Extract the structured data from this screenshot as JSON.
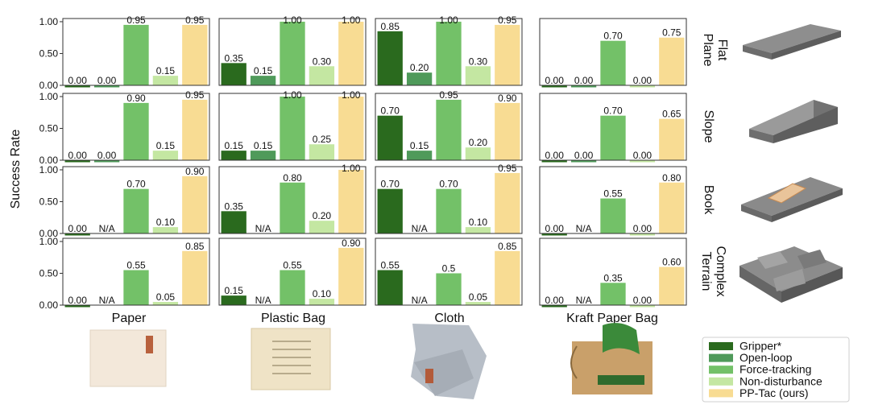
{
  "figure": {
    "ylabel": "Success Rate",
    "ytick_labels": [
      "0.00",
      "0.50",
      "1.00"
    ],
    "na_label": "N/A"
  },
  "chart_data": {
    "type": "bar",
    "ylim": [
      0,
      1.05
    ],
    "yticks": [
      0,
      0.5,
      1.0
    ],
    "ylabel": "Success Rate",
    "grid": false,
    "legend_position": "bottom-right",
    "series_names": [
      "Gripper*",
      "Open-loop",
      "Force-tracking",
      "Non-disturbance",
      "PP-Tac (ours)"
    ],
    "series_colors": [
      "#2a6a1e",
      "#4f9a5a",
      "#73c168",
      "#c4e7a2",
      "#f8dc93"
    ],
    "columns": [
      "Paper",
      "Plastic Bag",
      "Cloth",
      "Kraft Paper Bag"
    ],
    "rows": [
      "Flat Plane",
      "Slope",
      "Book",
      "Complex Terrain"
    ],
    "panels": [
      [
        {
          "values": [
            0.0,
            0.0,
            0.95,
            0.15,
            0.95
          ],
          "labels": [
            "0.00",
            "0.00",
            "0.95",
            "0.15",
            "0.95"
          ]
        },
        {
          "values": [
            0.35,
            0.15,
            1.0,
            0.3,
            1.0
          ],
          "labels": [
            "0.35",
            "0.15",
            "1.00",
            "0.30",
            "1.00"
          ]
        },
        {
          "values": [
            0.85,
            0.2,
            1.0,
            0.3,
            0.95
          ],
          "labels": [
            "0.85",
            "0.20",
            "1.00",
            "0.30",
            "0.95"
          ]
        },
        {
          "values": [
            0.0,
            0.0,
            0.7,
            0.0,
            0.75
          ],
          "labels": [
            "0.00",
            "0.00",
            "0.70",
            "0.00",
            "0.75"
          ]
        }
      ],
      [
        {
          "values": [
            0.0,
            0.0,
            0.9,
            0.15,
            0.95
          ],
          "labels": [
            "0.00",
            "0.00",
            "0.90",
            "0.15",
            "0.95"
          ]
        },
        {
          "values": [
            0.15,
            0.15,
            1.0,
            0.25,
            1.0
          ],
          "labels": [
            "0.15",
            "0.15",
            "1.00",
            "0.25",
            "1.00"
          ]
        },
        {
          "values": [
            0.7,
            0.15,
            0.95,
            0.2,
            0.9
          ],
          "labels": [
            "0.70",
            "0.15",
            "0.95",
            "0.20",
            "0.90"
          ]
        },
        {
          "values": [
            0.0,
            0.0,
            0.7,
            0.0,
            0.65
          ],
          "labels": [
            "0.00",
            "0.00",
            "0.70",
            "0.00",
            "0.65"
          ]
        }
      ],
      [
        {
          "values": [
            0.0,
            null,
            0.7,
            0.1,
            0.9
          ],
          "labels": [
            "0.00",
            "N/A",
            "0.70",
            "0.10",
            "0.90"
          ]
        },
        {
          "values": [
            0.35,
            null,
            0.8,
            0.2,
            1.0
          ],
          "labels": [
            "0.35",
            "N/A",
            "0.80",
            "0.20",
            "1.00"
          ]
        },
        {
          "values": [
            0.7,
            null,
            0.7,
            0.1,
            0.95
          ],
          "labels": [
            "0.70",
            "N/A",
            "0.70",
            "0.10",
            "0.95"
          ]
        },
        {
          "values": [
            0.0,
            null,
            0.55,
            0.0,
            0.8
          ],
          "labels": [
            "0.00",
            "N/A",
            "0.55",
            "0.00",
            "0.80"
          ]
        }
      ],
      [
        {
          "values": [
            0.0,
            null,
            0.55,
            0.05,
            0.85
          ],
          "labels": [
            "0.00",
            "N/A",
            "0.55",
            "0.05",
            "0.85"
          ]
        },
        {
          "values": [
            0.15,
            null,
            0.55,
            0.1,
            0.9
          ],
          "labels": [
            "0.15",
            "N/A",
            "0.55",
            "0.10",
            "0.90"
          ]
        },
        {
          "values": [
            0.55,
            null,
            0.5,
            0.05,
            0.85
          ],
          "labels": [
            "0.55",
            "N/A",
            "0.5",
            "0.05",
            "0.85"
          ]
        },
        {
          "values": [
            0.0,
            null,
            0.35,
            0.0,
            0.6
          ],
          "labels": [
            "0.00",
            "N/A",
            "0.35",
            "0.00",
            "0.60"
          ]
        }
      ]
    ]
  }
}
